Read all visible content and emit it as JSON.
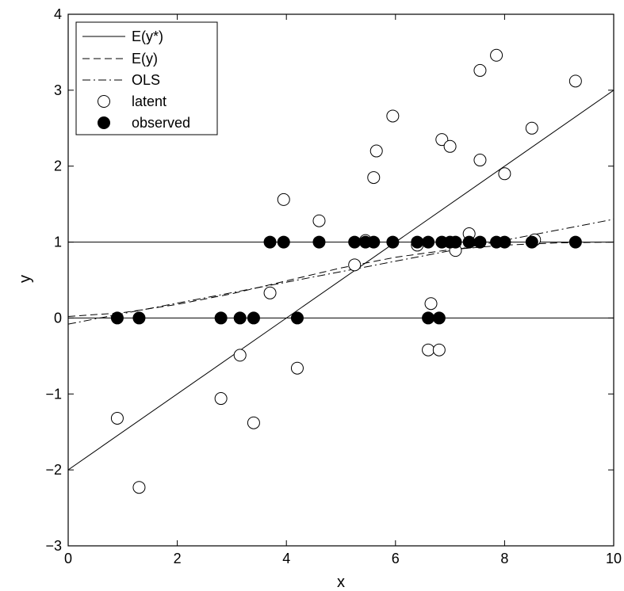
{
  "chart_data": {
    "type": "scatter",
    "xlabel": "x",
    "ylabel": "y",
    "xlim": [
      0,
      10
    ],
    "ylim": [
      -3,
      4
    ],
    "xticks": [
      0,
      2,
      4,
      6,
      8,
      10
    ],
    "yticks": [
      -3,
      -2,
      -1,
      0,
      1,
      2,
      3,
      4
    ],
    "xtick_labels": [
      "0",
      "2",
      "4",
      "6",
      "8",
      "10"
    ],
    "ytick_labels": [
      "−3",
      "−2",
      "−1",
      "0",
      "1",
      "2",
      "3",
      "4"
    ],
    "grid": false,
    "legend_position": "top-left",
    "legend": [
      {
        "label": "E(y*)",
        "style": "solid"
      },
      {
        "label": "E(y)",
        "style": "dashed"
      },
      {
        "label": "OLS",
        "style": "dashdot"
      },
      {
        "label": "latent",
        "style": "open-circle"
      },
      {
        "label": "observed",
        "style": "filled-circle"
      }
    ],
    "reference_lines": [
      0,
      1
    ],
    "lines": {
      "E_ystar": {
        "x": [
          0,
          10
        ],
        "y": [
          -2.0,
          3.0
        ]
      },
      "E_y": {
        "x": [
          0,
          1,
          2,
          3,
          4,
          5,
          6,
          7,
          8,
          9,
          10
        ],
        "y": [
          0.02,
          0.07,
          0.18,
          0.32,
          0.49,
          0.66,
          0.8,
          0.9,
          0.96,
          0.99,
          1.0
        ]
      },
      "OLS": {
        "x": [
          0,
          10
        ],
        "y": [
          -0.08,
          1.3
        ]
      }
    },
    "latent": {
      "x": [
        0.9,
        1.3,
        2.8,
        3.15,
        3.4,
        3.7,
        3.95,
        4.2,
        4.6,
        5.25,
        5.45,
        5.6,
        5.65,
        5.95,
        6.4,
        6.6,
        6.65,
        6.8,
        6.85,
        7.0,
        7.1,
        7.35,
        7.55,
        7.55,
        7.85,
        8.0,
        8.5,
        8.55,
        9.3
      ],
      "y": [
        -1.32,
        -2.23,
        -1.06,
        -0.49,
        -1.38,
        0.33,
        1.56,
        -0.66,
        1.28,
        0.7,
        1.02,
        1.85,
        2.2,
        2.66,
        0.96,
        -0.42,
        0.19,
        -0.42,
        2.35,
        2.26,
        0.89,
        1.11,
        3.26,
        2.08,
        3.46,
        1.9,
        2.5,
        1.03,
        3.12
      ]
    },
    "observed": {
      "x": [
        0.9,
        1.3,
        2.8,
        3.15,
        3.4,
        3.7,
        3.95,
        4.2,
        4.6,
        5.25,
        5.45,
        5.6,
        5.95,
        6.4,
        6.6,
        6.6,
        6.8,
        6.85,
        7.0,
        7.1,
        7.35,
        7.55,
        7.85,
        8.0,
        8.5,
        9.3
      ],
      "y": [
        0,
        0,
        0,
        0,
        0,
        1,
        1,
        0,
        1,
        1,
        1,
        1,
        1,
        1,
        1,
        0,
        0,
        1,
        1,
        1,
        1,
        1,
        1,
        1,
        1,
        1
      ]
    }
  }
}
